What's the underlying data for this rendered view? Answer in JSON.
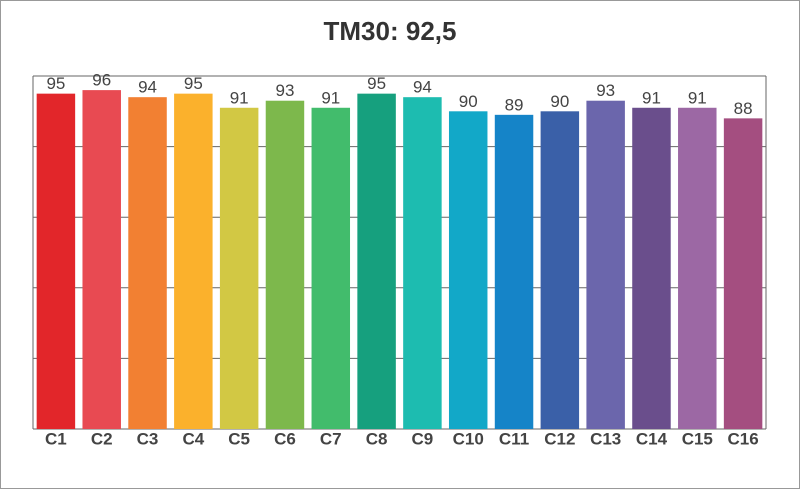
{
  "chart_data": {
    "type": "bar",
    "title": "TM30: 92,5",
    "categories": [
      "C1",
      "C2",
      "C3",
      "C4",
      "C5",
      "C6",
      "C7",
      "C8",
      "C9",
      "C10",
      "C11",
      "C12",
      "C13",
      "C14",
      "C15",
      "C16"
    ],
    "values": [
      95,
      96,
      94,
      95,
      91,
      93,
      91,
      95,
      94,
      90,
      89,
      90,
      93,
      91,
      91,
      88
    ],
    "colors": [
      "#e2262a",
      "#e84a52",
      "#f28032",
      "#fbb12c",
      "#d2c844",
      "#7db84c",
      "#42bc6c",
      "#16a07e",
      "#1dbcb0",
      "#12a8c8",
      "#1584c8",
      "#3a60a8",
      "#6b66ac",
      "#6a4e8c",
      "#9c68a4",
      "#a44e80"
    ],
    "ylim": [
      0,
      100
    ],
    "yticks": [
      0,
      20,
      40,
      60,
      80,
      100
    ],
    "grid": true
  }
}
